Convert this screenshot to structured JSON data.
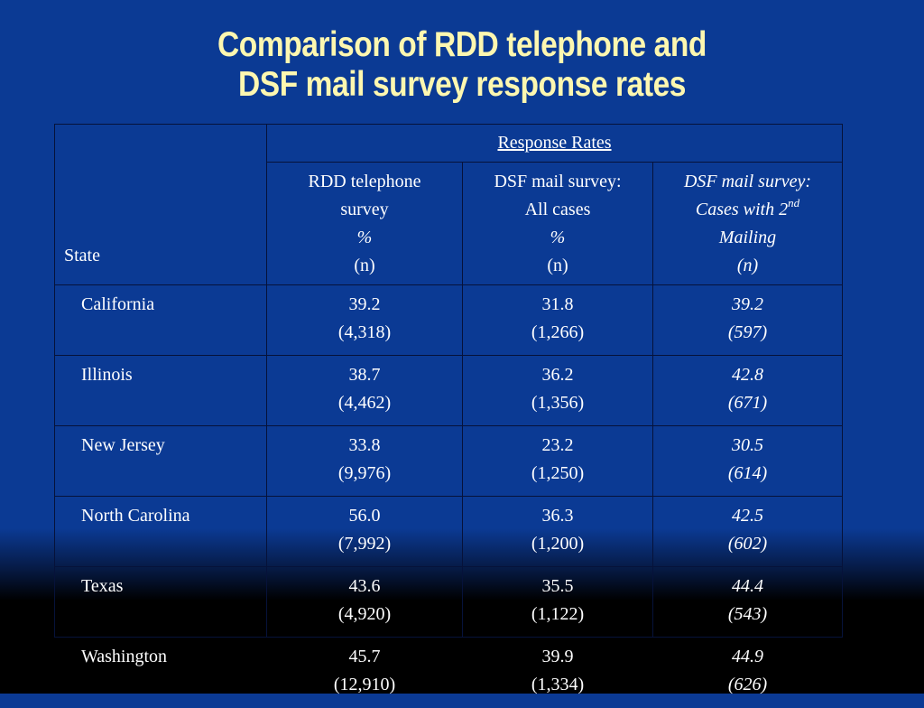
{
  "title": {
    "line1": "Comparison of RDD telephone and",
    "line2": "DSF mail survey response rates"
  },
  "table": {
    "state_header": "State",
    "group_header": "Response Rates",
    "columns": [
      {
        "line1": "RDD telephone",
        "line2": "survey",
        "line3": "%",
        "line4": "(n)"
      },
      {
        "line1": "DSF mail survey:",
        "line2": "All cases",
        "line3": "%",
        "line4": "(n)"
      },
      {
        "line1": "DSF mail survey:",
        "line2_base": "Cases with 2",
        "line2_sup": "nd",
        "line3": "Mailing",
        "line4": "(n)"
      }
    ],
    "rows": [
      {
        "state": "California",
        "rdd_pct": "39.2",
        "rdd_n": "(4,318)",
        "dsf_pct": "31.8",
        "dsf_n": "(1,266)",
        "dsf2_pct": "39.2",
        "dsf2_n": "(597)"
      },
      {
        "state": "Illinois",
        "rdd_pct": "38.7",
        "rdd_n": "(4,462)",
        "dsf_pct": "36.2",
        "dsf_n": "(1,356)",
        "dsf2_pct": "42.8",
        "dsf2_n": "(671)"
      },
      {
        "state": "New Jersey",
        "rdd_pct": "33.8",
        "rdd_n": "(9,976)",
        "dsf_pct": "23.2",
        "dsf_n": "(1,250)",
        "dsf2_pct": "30.5",
        "dsf2_n": "(614)"
      },
      {
        "state": "North Carolina",
        "rdd_pct": "56.0",
        "rdd_n": "(7,992)",
        "dsf_pct": "36.3",
        "dsf_n": "(1,200)",
        "dsf2_pct": "42.5",
        "dsf2_n": "(602)"
      },
      {
        "state": "Texas",
        "rdd_pct": "43.6",
        "rdd_n": "(4,920)",
        "dsf_pct": "35.5",
        "dsf_n": "(1,122)",
        "dsf2_pct": "44.4",
        "dsf2_n": "(543)"
      },
      {
        "state": "Washington",
        "rdd_pct": "45.7",
        "rdd_n": "(12,910)",
        "dsf_pct": "39.9",
        "dsf_n": "(1,334)",
        "dsf2_pct": "44.9",
        "dsf2_n": "(626)"
      }
    ]
  },
  "colors": {
    "background_top": "#0b3a94",
    "background_bottom": "#000000",
    "title_text": "#fdf7b0",
    "table_text": "#ffffff"
  }
}
